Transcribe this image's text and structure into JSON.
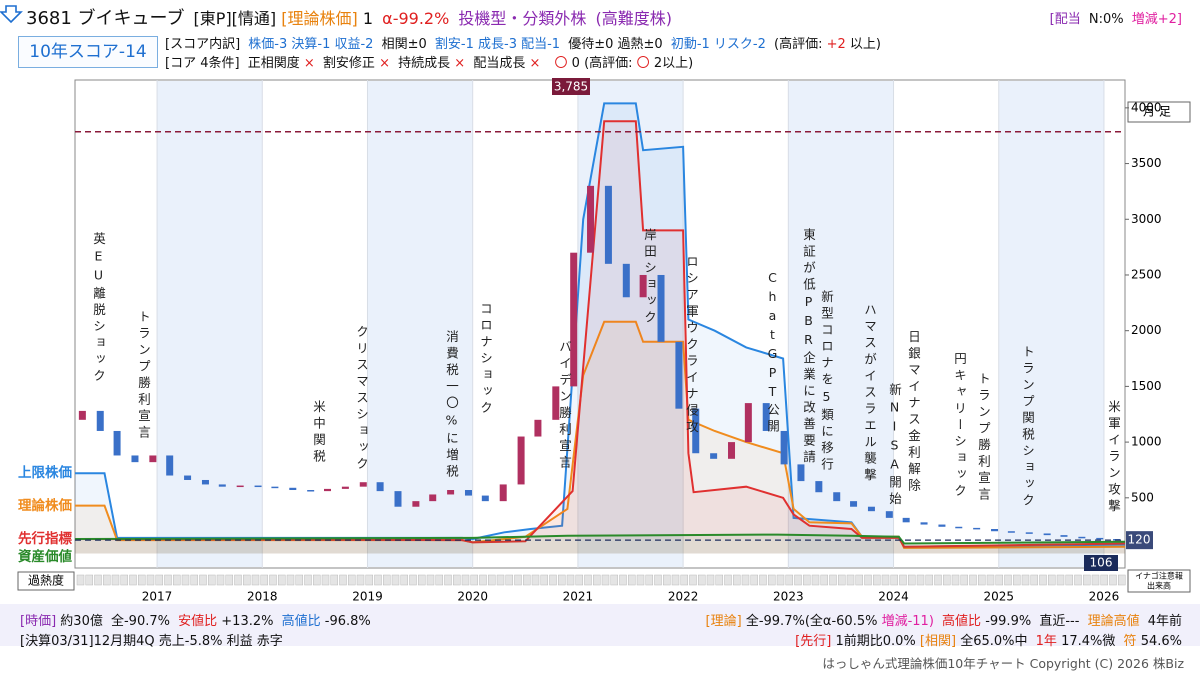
{
  "header": {
    "code_name": "3681 ブイキューブ",
    "tags": [
      "[東P][情通]",
      "[理論株価]",
      "1",
      "α-99.2%",
      "投機型・分類外株",
      "(高難度株)"
    ],
    "dividend": [
      "[配当",
      "N:0%",
      "増減+2]"
    ],
    "score_badge": "10年スコア-14",
    "score_line": [
      "[スコア内訳]",
      "株価-3 決算-1 収益-2",
      "相関±0",
      "割安-1 成長-3 配当-1",
      "優待±0 過熱±0",
      "初動-1 リスク-2",
      "(高評価:",
      "+2",
      "以上)"
    ],
    "core_line": [
      "[コア 4条件]",
      "正相関度",
      "×",
      "割安修正",
      "×",
      "持続成長",
      "×",
      "配当成長",
      "×",
      "〇",
      "0 (高評価:",
      "〇",
      "2以上)"
    ]
  },
  "chart_data": {
    "type": "candlestick",
    "y_axis_label": "月足",
    "heat_label": "過熱度",
    "volume_box": [
      "イナゴ注意報",
      "出来高"
    ],
    "xlim": [
      2016.22,
      2026.2
    ],
    "xticks": [
      2017,
      2018,
      2019,
      2020,
      2021,
      2022,
      2023,
      2024,
      2025,
      2026
    ],
    "ylim": [
      -130,
      4250
    ],
    "yticks": [
      500,
      1000,
      1500,
      2000,
      2500,
      3000,
      3500,
      4000
    ],
    "up_color": "#b03060",
    "down_color": "#3a70c8",
    "x": [
      2016.29,
      2016.46,
      2016.62,
      2016.79,
      2016.96,
      2017.12,
      2017.29,
      2017.46,
      2017.62,
      2017.79,
      2017.96,
      2018.12,
      2018.29,
      2018.46,
      2018.62,
      2018.79,
      2018.96,
      2019.12,
      2019.29,
      2019.46,
      2019.62,
      2019.79,
      2019.96,
      2020.12,
      2020.29,
      2020.46,
      2020.62,
      2020.79,
      2020.96,
      2021.12,
      2021.29,
      2021.46,
      2021.62,
      2021.79,
      2021.96,
      2022.12,
      2022.29,
      2022.46,
      2022.62,
      2022.79,
      2022.96,
      2023.12,
      2023.29,
      2023.46,
      2023.62,
      2023.79,
      2023.96,
      2024.12,
      2024.29,
      2024.46,
      2024.62,
      2024.79,
      2024.96,
      2025.12,
      2025.29,
      2025.46,
      2025.62,
      2025.79,
      2025.96,
      2026.12
    ],
    "open": [
      1200,
      1280,
      1100,
      880,
      820,
      880,
      700,
      660,
      620,
      600,
      610,
      600,
      590,
      570,
      560,
      580,
      600,
      640,
      560,
      420,
      470,
      530,
      570,
      520,
      470,
      620,
      1050,
      1200,
      1500,
      2700,
      3300,
      2600,
      2300,
      2500,
      1900,
      1300,
      900,
      850,
      1000,
      1350,
      1100,
      800,
      650,
      550,
      470,
      420,
      380,
      320,
      280,
      260,
      240,
      230,
      220,
      200,
      190,
      180,
      165,
      150,
      140,
      130
    ],
    "close": [
      1280,
      1100,
      880,
      820,
      880,
      700,
      660,
      620,
      600,
      610,
      600,
      590,
      570,
      560,
      580,
      600,
      640,
      560,
      420,
      470,
      530,
      570,
      520,
      470,
      620,
      1050,
      1200,
      1500,
      2700,
      3300,
      2600,
      2300,
      2500,
      1900,
      1300,
      900,
      850,
      1000,
      1350,
      1100,
      800,
      650,
      550,
      470,
      420,
      380,
      320,
      280,
      260,
      240,
      230,
      220,
      200,
      190,
      180,
      165,
      150,
      140,
      130,
      120
    ],
    "max_line": {
      "value": 3785,
      "label": "3,785"
    },
    "series": [
      {
        "name": "上限株価",
        "color": "#2a86e0",
        "x": [
          2016.22,
          2016.5,
          2016.62,
          2019.9,
          2020.0,
          2020.3,
          2020.55,
          2020.85,
          2021.05,
          2021.25,
          2021.55,
          2021.62,
          2022.0,
          2022.05,
          2022.3,
          2022.6,
          2022.95,
          2023.05,
          2023.6,
          2023.7,
          2024.05,
          2024.1,
          2026.2
        ],
        "values": [
          720,
          720,
          140,
          140,
          130,
          190,
          220,
          250,
          3000,
          4040,
          4040,
          3620,
          3650,
          2100,
          2000,
          1850,
          1750,
          320,
          280,
          150,
          150,
          60,
          80
        ]
      },
      {
        "name": "理論株価",
        "color": "#f08c1e",
        "x": [
          2016.22,
          2016.5,
          2016.62,
          2019.9,
          2020.0,
          2020.5,
          2020.9,
          2021.05,
          2021.25,
          2021.55,
          2021.62,
          2022.0,
          2022.05,
          2022.3,
          2022.6,
          2022.95,
          2023.05,
          2023.2,
          2023.6,
          2023.7,
          2024.05,
          2024.1,
          2026.2
        ],
        "values": [
          430,
          430,
          120,
          120,
          100,
          150,
          400,
          1600,
          2080,
          2080,
          1900,
          1900,
          1200,
          1100,
          1000,
          900,
          400,
          280,
          270,
          150,
          150,
          50,
          60
        ]
      },
      {
        "name": "先行指標",
        "color": "#e03030",
        "x": [
          2016.22,
          2019.9,
          2020.0,
          2020.5,
          2020.95,
          2021.25,
          2021.55,
          2021.62,
          2022.0,
          2022.05,
          2022.1,
          2022.6,
          2022.95,
          2023.05,
          2023.2,
          2023.6,
          2023.7,
          2024.05,
          2024.1,
          2026.2
        ],
        "values": [
          130,
          120,
          100,
          110,
          560,
          3880,
          3880,
          2900,
          2900,
          900,
          550,
          600,
          500,
          350,
          250,
          220,
          140,
          140,
          60,
          90
        ]
      },
      {
        "name": "資産価値",
        "color": "#2a8a2a",
        "x": [
          2016.22,
          2020.0,
          2020.9,
          2022.9,
          2023.6,
          2024.05,
          2024.1,
          2026.2
        ],
        "values": [
          130,
          140,
          160,
          170,
          160,
          150,
          90,
          106
        ]
      }
    ],
    "annotations": [
      "英EU離脱ショック",
      "トランプ勝利宣言",
      "米中関税",
      "クリスマスショック",
      "消費税一〇%に増税",
      "コロナショック",
      "バイデン勝利宣言",
      "岸田ショック",
      "ロシア軍ウクライナ侵攻",
      "ChatGPT公開",
      "東証が低PBR企業に改善要請",
      "新型コロナを5類に移行",
      "ハマスがイスラエル襲撃",
      "新NISA開始",
      "日銀マイナス金利解除",
      "円キャリーショック",
      "トランプ勝利宣言",
      "トランプ関税ショック",
      "米軍イラン攻撃"
    ]
  },
  "footer": {
    "left1": [
      "[時価]",
      "約30億",
      "全-90.7%",
      "安値比",
      "+13.2%",
      "高値比",
      "-96.8%"
    ],
    "right1": [
      "[理論]",
      "全-99.7%(全α-60.5%",
      "増減-11)",
      "高値比",
      "-99.9%",
      "直近---",
      "理論高値",
      "4年前"
    ],
    "left2": "[決算03/31]12月期4Q 売上-5.8% 利益 赤字",
    "right2": [
      "[先行]",
      "1前期比0.0%",
      "[相関]",
      "全65.0%中",
      "1年",
      "17.4%微",
      "符",
      "54.6%"
    ],
    "copyright": "はっしゃん式理論株価10年チャート Copyright (C) 2026 株Biz"
  }
}
